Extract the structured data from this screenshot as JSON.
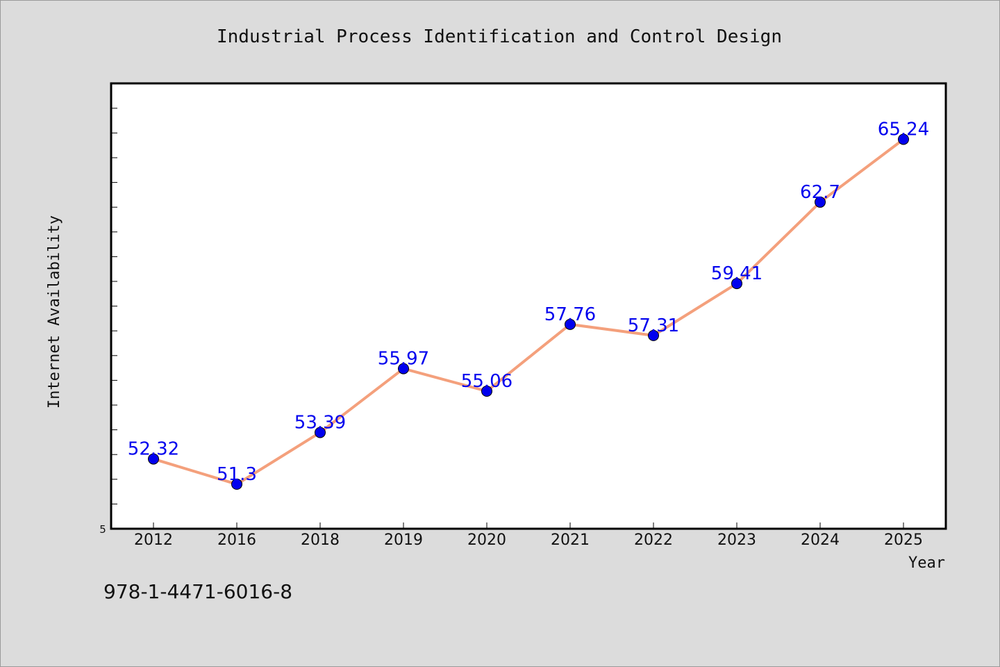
{
  "chart_data": {
    "type": "line",
    "title": "Industrial Process Identification and Control Design",
    "xlabel": "Year",
    "ylabel": "Internet Availability",
    "categories": [
      "2012",
      "2016",
      "2018",
      "2019",
      "2020",
      "2021",
      "2022",
      "2023",
      "2024",
      "2025"
    ],
    "series": [
      {
        "values": [
          52.32,
          51.3,
          53.39,
          55.97,
          55.06,
          57.76,
          57.31,
          59.41,
          62.7,
          65.24
        ]
      }
    ],
    "data_labels": [
      "52.32",
      "51.3",
      "53.39",
      "55.97",
      "55.06",
      "57.76",
      "57.31",
      "59.41",
      "62.7",
      "65.24"
    ],
    "y_tick_label": "5",
    "ylim": [
      49.5,
      67.5
    ],
    "grid": false,
    "line_color": "#f4a07c",
    "marker_color": "#0000ee",
    "label_color": "#0000ee"
  },
  "footer": {
    "code": "978-1-4471-6016-8"
  }
}
